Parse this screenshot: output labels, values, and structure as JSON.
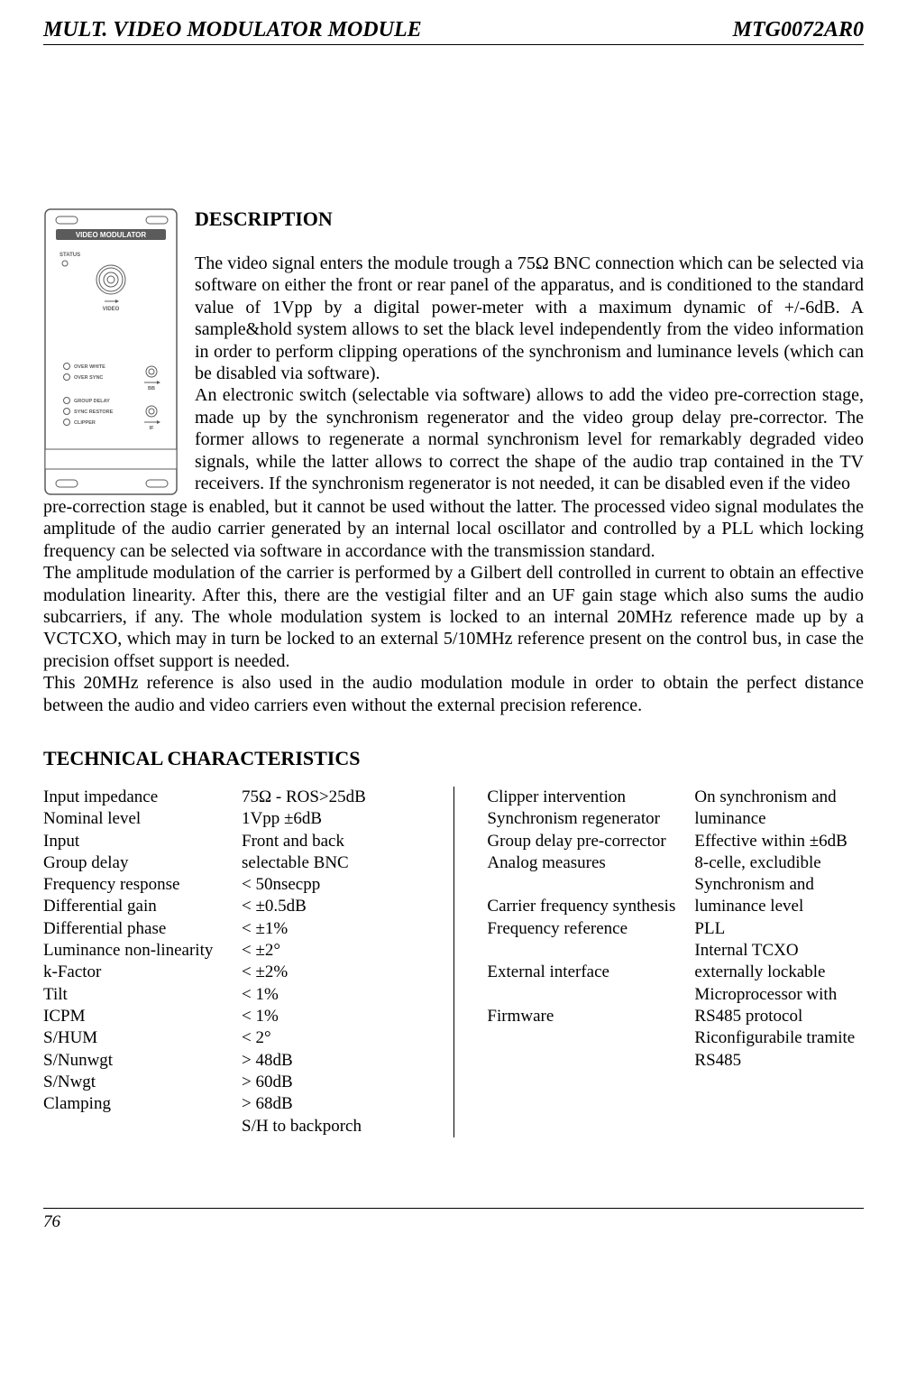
{
  "header": {
    "title_left": "MULT.  VIDEO  MODULATOR  MODULE",
    "title_right": "MTG0072AR0"
  },
  "module_panel": {
    "top_label": "VIDEO MODULATOR",
    "status_label": "STATUS",
    "video_label": "VIDEO",
    "rows_group1": [
      "OVER WHITE",
      "OVER SYNC"
    ],
    "bb_label": "BB",
    "rows_group2": [
      "GROUP DELAY",
      "SYNC RESTORE",
      "CLIPPER"
    ],
    "if_label": "IF"
  },
  "description": {
    "heading": "DESCRIPTION",
    "para_side": "The video signal enters the module trough a 75Ω BNC connection which can be selected via software on either the front or rear panel of the apparatus, and is conditioned to the standard value of 1Vpp by a digital power-meter with a maximum dynamic of +/-6dB. A sample&hold system allows to set the black level independently from the video information in order to perform clipping operations of the synchronism and luminance levels (which can be disabled via software).\nAn electronic switch (selectable via software) allows to add the video pre-correction stage, made up by the synchronism regenerator and the video group delay pre-corrector. The former allows to regenerate a normal synchronism level for remarkably degraded video signals, while the latter allows to correct the shape of the audio trap contained in the TV receivers. If the synchronism regenerator is not needed, it can be disabled even if the video",
    "para_full": "pre-correction stage is enabled, but it cannot be used without the latter. The processed video signal modulates the amplitude of the audio carrier generated by an internal local oscillator and controlled by a PLL which locking frequency can be selected via software in accordance with the transmission standard.\nThe amplitude modulation of the carrier is performed by a Gilbert dell controlled in current to obtain an effective modulation linearity. After this, there are the vestigial filter and an UF gain stage which also sums the audio subcarriers, if any. The whole modulation system is locked to an internal 20MHz reference made up by a VCTCXO, which may in turn be locked to an external 5/10MHz reference present on the control bus, in case the precision offset support is needed.\nThis 20MHz reference is also used in the audio modulation module in order to obtain the perfect distance between the audio and video carriers even without the external precision reference."
  },
  "tech": {
    "heading": "TECHNICAL CHARACTERISTICS",
    "left": [
      {
        "label": "Input impedance",
        "value": "75Ω - ROS>25dB"
      },
      {
        "label": "Nominal level",
        "value": "1Vpp ±6dB"
      },
      {
        "label": "Input",
        "value": "Front and back selectable BNC"
      },
      {
        "label": "Group delay",
        "value": "< 50nsecpp"
      },
      {
        "label": "Frequency  response",
        "value": "< ±0.5dB"
      },
      {
        "label": "Differential gain",
        "value": "< ±1%"
      },
      {
        "label": "Differential phase",
        "value": "< ±2°"
      },
      {
        "label": "Luminance non-linearity",
        "value": "< ±2%"
      },
      {
        "label": "k-Factor",
        "value": "< 1%"
      },
      {
        "label": "Tilt",
        "value": "< 1%"
      },
      {
        "label": "ICPM",
        "value": "< 2°"
      },
      {
        "label": "S/HUM",
        "value": "> 48dB"
      },
      {
        "label": "S/Nunwgt",
        "value": "> 60dB"
      },
      {
        "label": "S/Nwgt",
        "value": "> 68dB"
      },
      {
        "label": "Clamping",
        "value": "S/H to backporch"
      }
    ],
    "right": [
      {
        "label": "Clipper intervention",
        "value": "On synchronism and luminance"
      },
      {
        "label": "Synchronism regenerator",
        "value": "Effective within ±6dB"
      },
      {
        "label": "Group delay pre-corrector",
        "value": "8-celle, excludible"
      },
      {
        "label": "Analog measures",
        "value": "Synchronism and"
      },
      {
        "label": "",
        "value": "luminance level"
      },
      {
        "label": "Carrier frequency synthesis",
        "value": "PLL"
      },
      {
        "label": "Frequency reference",
        "value": "Internal TCXO"
      },
      {
        "label": "",
        "value": "externally lockable"
      },
      {
        "label": "External interface",
        "value": "Microprocessor with"
      },
      {
        "label": "",
        "value": "RS485 protocol"
      },
      {
        "label": "Firmware",
        "value": "Riconfigurabile tramite RS485"
      }
    ]
  },
  "page_number": "76",
  "colors": {
    "background": "#ffffff",
    "text": "#000000",
    "panel_stroke": "#5b5b5b",
    "panel_dark": "#5b5b5b",
    "panel_light": "#f0f0f0"
  }
}
